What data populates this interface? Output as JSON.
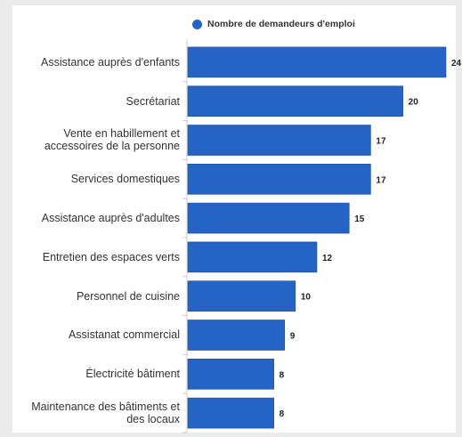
{
  "chart_data": {
    "type": "bar",
    "orientation": "horizontal",
    "categories": [
      "Assistance auprès d'enfants",
      "Secrétariat",
      "Vente en habillement et accessoires de la personne",
      "Services domestiques",
      "Assistance auprès d'adultes",
      "Entretien des espaces verts",
      "Personnel de cuisine",
      "Assistanat commercial",
      "Électricité bâtiment",
      "Maintenance des bâtiments et des locaux"
    ],
    "series": [
      {
        "name": "Nombre de demandeurs d'emploi",
        "values": [
          24,
          20,
          17,
          17,
          15,
          12,
          10,
          9,
          8,
          8
        ],
        "color": "#2563c4"
      }
    ],
    "data_labels": true,
    "legend": "top-center",
    "grid": false,
    "xlim": [
      0,
      24
    ]
  }
}
